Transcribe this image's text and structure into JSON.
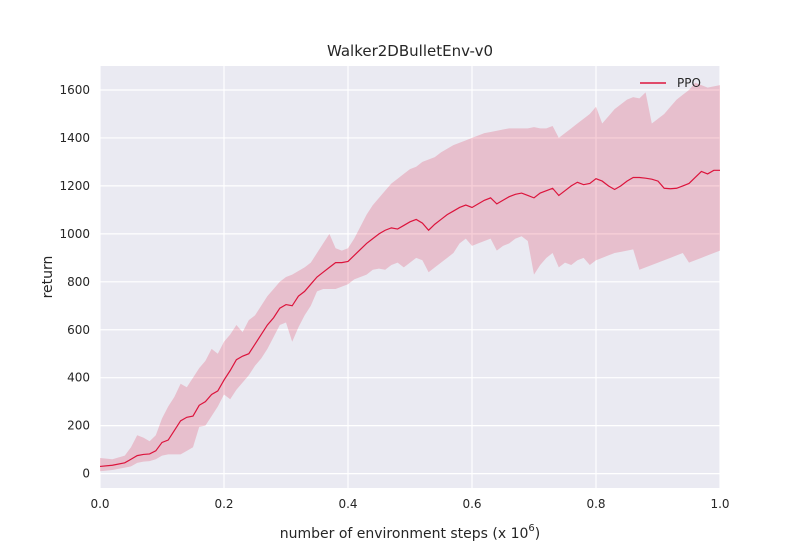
{
  "chart_data": {
    "type": "line",
    "title": "Walker2DBulletEnv-v0",
    "xlabel": "number of environment steps (x 10",
    "xlabel_exponent": "6",
    "xlabel_suffix": ")",
    "ylabel": "return",
    "xlim": [
      0.0,
      1.0
    ],
    "ylim": [
      -60,
      1700
    ],
    "xticks": [
      0.0,
      0.2,
      0.4,
      0.6,
      0.8,
      1.0
    ],
    "xtick_labels": [
      "0.0",
      "0.2",
      "0.4",
      "0.6",
      "0.8",
      "1.0"
    ],
    "yticks": [
      0,
      200,
      400,
      600,
      800,
      1000,
      1200,
      1400,
      1600
    ],
    "ytick_labels": [
      "0",
      "200",
      "400",
      "600",
      "800",
      "1000",
      "1200",
      "1400",
      "1600"
    ],
    "grid": true,
    "legend_position": "top-right",
    "series": [
      {
        "name": "PPO",
        "color": "#dc143c",
        "band_color": "#dc143c",
        "x": [
          0.0,
          0.02,
          0.04,
          0.05,
          0.06,
          0.07,
          0.08,
          0.09,
          0.1,
          0.11,
          0.12,
          0.13,
          0.14,
          0.15,
          0.16,
          0.17,
          0.18,
          0.19,
          0.2,
          0.21,
          0.22,
          0.23,
          0.24,
          0.25,
          0.26,
          0.27,
          0.28,
          0.29,
          0.3,
          0.31,
          0.32,
          0.33,
          0.34,
          0.35,
          0.36,
          0.37,
          0.38,
          0.39,
          0.4,
          0.41,
          0.42,
          0.43,
          0.44,
          0.45,
          0.46,
          0.47,
          0.48,
          0.49,
          0.5,
          0.51,
          0.52,
          0.53,
          0.54,
          0.55,
          0.56,
          0.57,
          0.58,
          0.59,
          0.6,
          0.61,
          0.62,
          0.63,
          0.64,
          0.65,
          0.66,
          0.67,
          0.68,
          0.69,
          0.7,
          0.71,
          0.72,
          0.73,
          0.74,
          0.75,
          0.76,
          0.77,
          0.78,
          0.79,
          0.8,
          0.81,
          0.82,
          0.83,
          0.84,
          0.85,
          0.86,
          0.87,
          0.88,
          0.89,
          0.9,
          0.91,
          0.92,
          0.93,
          0.94,
          0.95,
          0.96,
          0.97,
          0.98,
          0.99,
          1.0
        ],
        "values": [
          30,
          35,
          45,
          60,
          75,
          80,
          82,
          95,
          130,
          140,
          180,
          220,
          235,
          240,
          285,
          300,
          330,
          345,
          390,
          430,
          475,
          490,
          500,
          540,
          580,
          620,
          650,
          690,
          705,
          700,
          740,
          760,
          790,
          820,
          840,
          860,
          880,
          880,
          885,
          910,
          935,
          960,
          980,
          1000,
          1015,
          1025,
          1020,
          1035,
          1050,
          1060,
          1045,
          1015,
          1040,
          1060,
          1080,
          1095,
          1110,
          1120,
          1110,
          1125,
          1140,
          1150,
          1125,
          1140,
          1155,
          1165,
          1170,
          1160,
          1150,
          1170,
          1180,
          1190,
          1160,
          1180,
          1200,
          1215,
          1205,
          1210,
          1230,
          1220,
          1200,
          1185,
          1200,
          1220,
          1235,
          1235,
          1232,
          1228,
          1220,
          1190,
          1188,
          1190,
          1200,
          1210,
          1235,
          1260,
          1250,
          1265,
          1265
        ],
        "upper": [
          65,
          60,
          75,
          110,
          160,
          150,
          135,
          160,
          230,
          280,
          320,
          375,
          360,
          400,
          440,
          470,
          520,
          500,
          550,
          580,
          620,
          590,
          640,
          660,
          700,
          740,
          770,
          800,
          820,
          830,
          845,
          860,
          880,
          920,
          960,
          1000,
          940,
          930,
          940,
          980,
          1030,
          1080,
          1120,
          1150,
          1180,
          1210,
          1230,
          1250,
          1270,
          1280,
          1300,
          1310,
          1320,
          1340,
          1355,
          1370,
          1380,
          1390,
          1400,
          1410,
          1420,
          1425,
          1430,
          1435,
          1440,
          1440,
          1440,
          1440,
          1445,
          1440,
          1440,
          1450,
          1400,
          1420,
          1440,
          1460,
          1480,
          1500,
          1530,
          1460,
          1490,
          1520,
          1540,
          1560,
          1570,
          1565,
          1590,
          1460,
          1480,
          1500,
          1530,
          1560,
          1580,
          1600,
          1630,
          1620,
          1610,
          1615,
          1620
        ],
        "lower": [
          10,
          15,
          25,
          30,
          45,
          50,
          52,
          60,
          75,
          80,
          80,
          80,
          95,
          110,
          195,
          200,
          240,
          280,
          330,
          310,
          350,
          380,
          410,
          450,
          480,
          520,
          570,
          620,
          630,
          550,
          610,
          660,
          700,
          760,
          770,
          770,
          770,
          780,
          790,
          810,
          820,
          830,
          850,
          855,
          850,
          870,
          880,
          860,
          880,
          900,
          890,
          840,
          860,
          880,
          900,
          920,
          960,
          980,
          950,
          960,
          970,
          980,
          930,
          950,
          960,
          980,
          990,
          970,
          830,
          870,
          900,
          920,
          860,
          880,
          870,
          890,
          900,
          870,
          890,
          900,
          910,
          920,
          925,
          930,
          935,
          850,
          860,
          870,
          880,
          890,
          900,
          910,
          920,
          880,
          890,
          900,
          910,
          920,
          930
        ]
      }
    ]
  }
}
